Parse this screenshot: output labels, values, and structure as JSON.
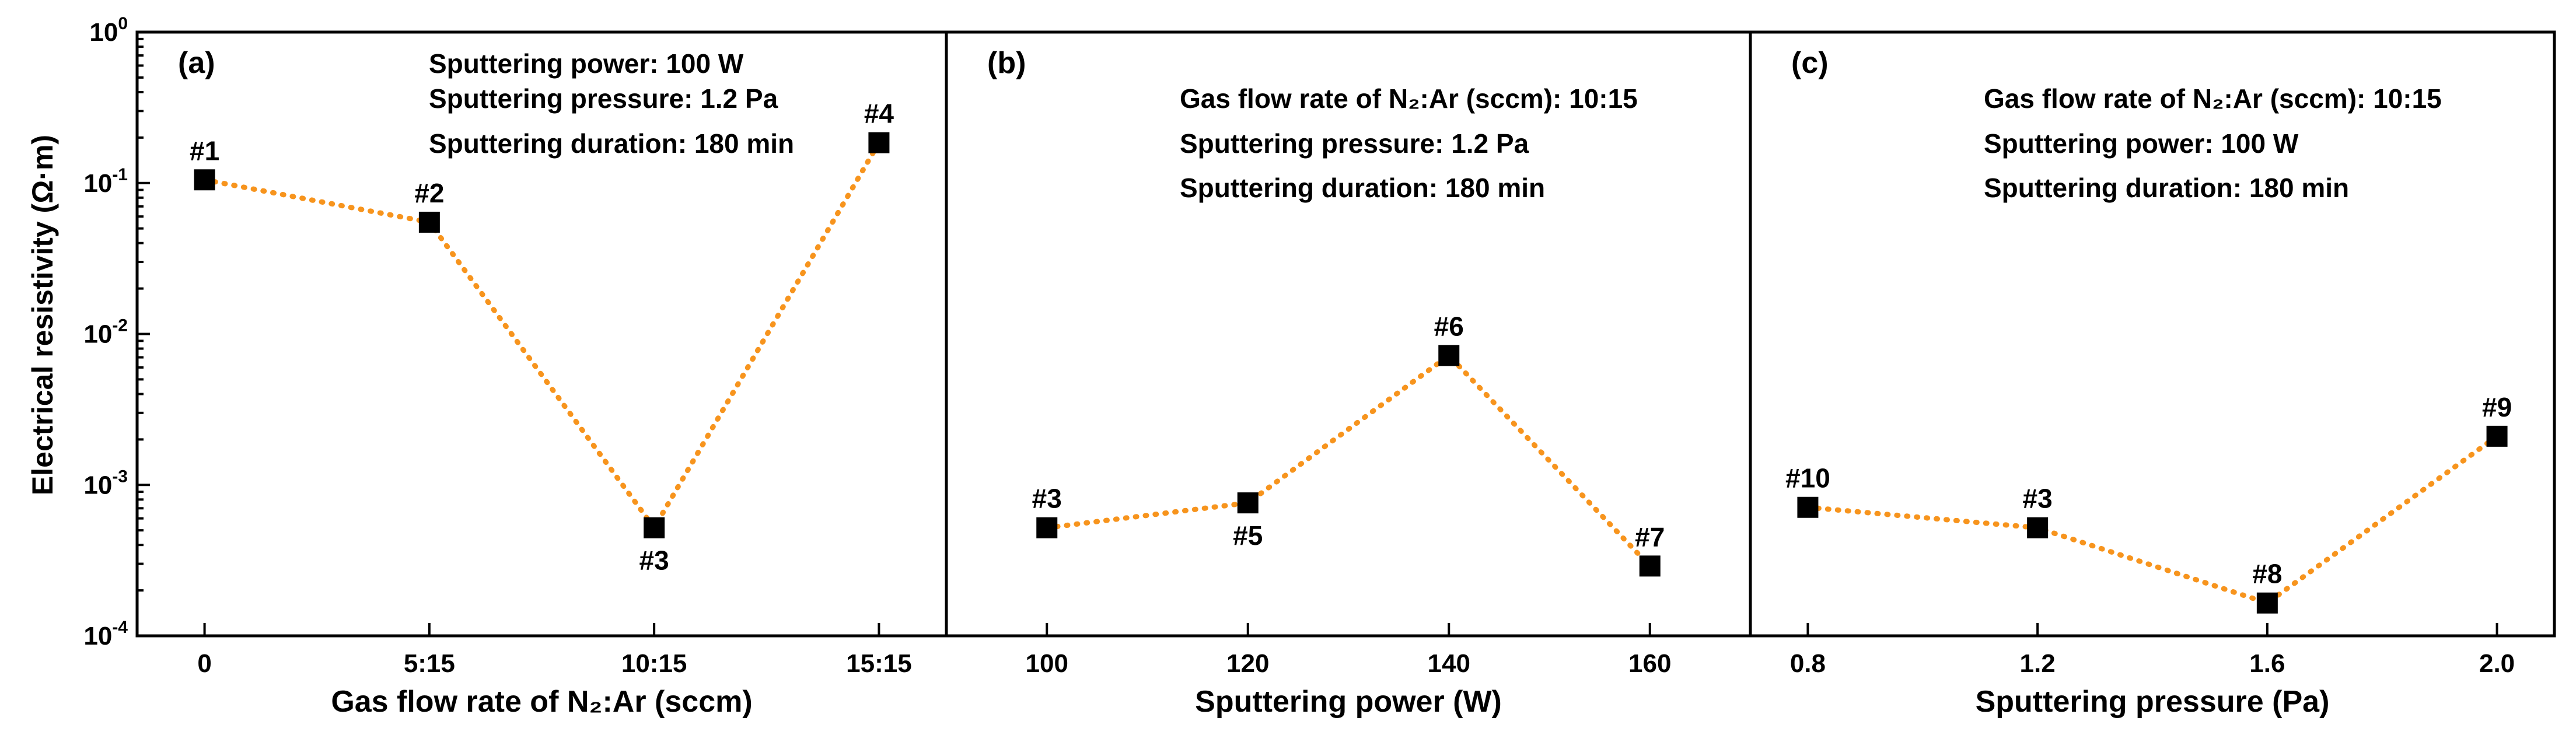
{
  "style": {
    "line_color": "#f7941d",
    "marker_color": "#000000",
    "axis_color": "#000000"
  },
  "chart_data": {
    "type": "line",
    "ylabel": "Electrical resistivity (Ω·m)",
    "y_scale": "log",
    "ylim": [
      0.0001,
      1
    ],
    "y_ticks": [
      {
        "value": 1,
        "base": "10",
        "exp": "0"
      },
      {
        "value": 0.1,
        "base": "10",
        "exp": "-1"
      },
      {
        "value": 0.01,
        "base": "10",
        "exp": "-2"
      },
      {
        "value": 0.001,
        "base": "10",
        "exp": "-3"
      },
      {
        "value": 0.0001,
        "base": "10",
        "exp": "-4"
      }
    ],
    "panels": [
      {
        "label": "(a)",
        "xlabel": "Gas flow rate of N₂:Ar (sccm)",
        "categories": [
          "0",
          "5:15",
          "10:15",
          "15:15"
        ],
        "xlim": [
          -0.3,
          3.3
        ],
        "x_ticks": [
          0,
          1,
          2,
          3
        ],
        "x": [
          0,
          1,
          2,
          3
        ],
        "values": [
          0.105,
          0.055,
          0.00052,
          0.185
        ],
        "point_labels": [
          "#1",
          "#2",
          "#3",
          "#4"
        ],
        "point_label_pos": [
          "above",
          "above",
          "below",
          "above"
        ],
        "annotations": [
          "Sputtering power: 100 W",
          "Sputtering pressure: 1.2 Pa",
          "Sputtering duration: 180 min"
        ]
      },
      {
        "label": "(b)",
        "xlabel": "Sputtering power (W)",
        "categories": [
          "100",
          "120",
          "140",
          "160"
        ],
        "xlim": [
          90,
          170
        ],
        "x_ticks": [
          100,
          120,
          140,
          160
        ],
        "x": [
          100,
          120,
          140,
          160
        ],
        "values": [
          0.00052,
          0.00076,
          0.0072,
          0.00029
        ],
        "point_labels": [
          "#3",
          "#5",
          "#6",
          "#7"
        ],
        "point_label_pos": [
          "above",
          "below",
          "above",
          "above"
        ],
        "annotations": [
          "Gas flow rate of N₂:Ar (sccm): 10:15",
          "Sputtering pressure: 1.2 Pa",
          "Sputtering duration: 180 min"
        ]
      },
      {
        "label": "(c)",
        "xlabel": "Sputtering pressure (Pa)",
        "categories": [
          "0.8",
          "1.2",
          "1.6",
          "2.0"
        ],
        "xlim": [
          0.7,
          2.1
        ],
        "x_ticks": [
          0.8,
          1.2,
          1.6,
          2.0
        ],
        "x": [
          0.8,
          1.2,
          1.6,
          2.0
        ],
        "values": [
          0.00071,
          0.00052,
          0.000165,
          0.0021
        ],
        "point_labels": [
          "#10",
          "#3",
          "#8",
          "#9"
        ],
        "point_label_pos": [
          "above",
          "above",
          "above",
          "above"
        ],
        "annotations": [
          "Gas flow rate of N₂:Ar (sccm): 10:15",
          "Sputtering power: 100 W",
          "Sputtering duration: 180 min"
        ]
      }
    ]
  }
}
